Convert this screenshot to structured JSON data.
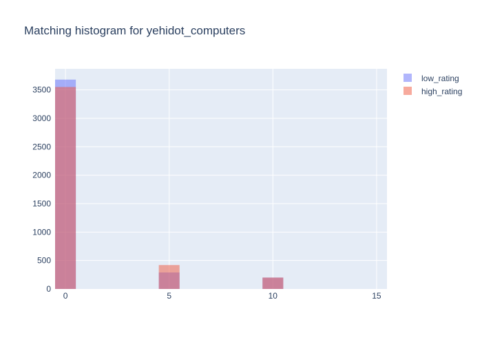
{
  "chart_data": {
    "type": "bar",
    "subtype": "overlaid-histogram",
    "title": "Matching histogram for yehidot_computers",
    "xlabel": "",
    "ylabel": "",
    "xlim": [
      -0.5,
      15.5
    ],
    "ylim": [
      0,
      3870
    ],
    "bin_width": 1,
    "x_ticks": [
      0,
      5,
      10,
      15
    ],
    "y_ticks": [
      0,
      500,
      1000,
      1500,
      2000,
      2500,
      3000,
      3500
    ],
    "grid": true,
    "legend_position": "top-right",
    "plot_background": "#e5ecf6",
    "series": [
      {
        "name": "low_rating",
        "color": "#636efa",
        "opacity": 0.5,
        "bins": [
          {
            "x": 0,
            "y": 3680
          },
          {
            "x": 5,
            "y": 290
          },
          {
            "x": 10,
            "y": 200
          }
        ]
      },
      {
        "name": "high_rating",
        "color": "#ef553b",
        "opacity": 0.5,
        "bins": [
          {
            "x": 0,
            "y": 3550
          },
          {
            "x": 5,
            "y": 420
          },
          {
            "x": 10,
            "y": 200
          }
        ]
      }
    ]
  }
}
